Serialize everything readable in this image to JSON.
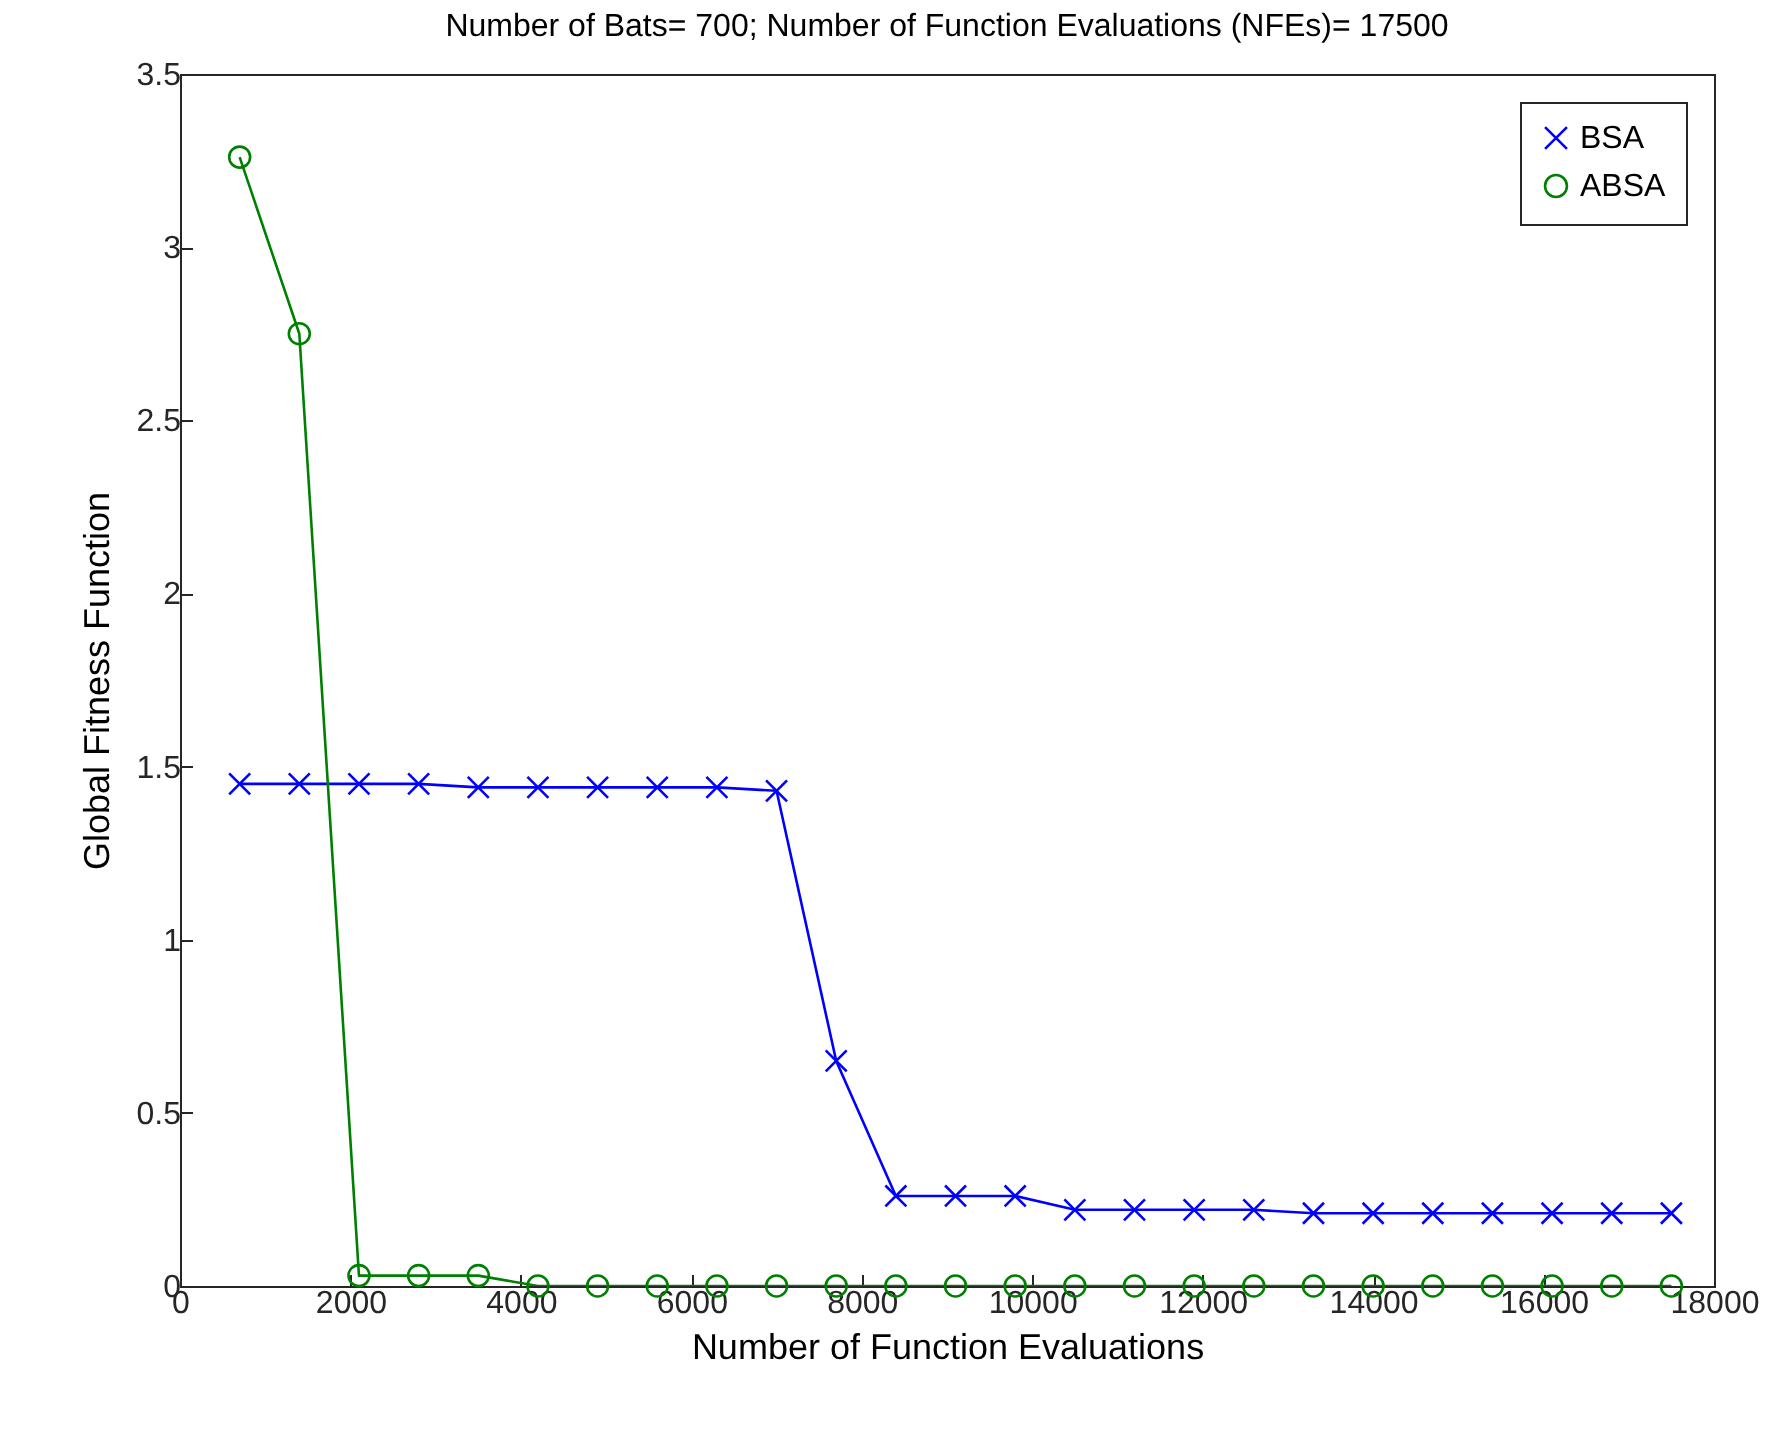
{
  "chart_data": {
    "type": "line",
    "title": "Number of Bats= 700; Number of Function Evaluations (NFEs)= 17500",
    "xlabel": "Number of Function Evaluations",
    "ylabel": "Global Fitness Function",
    "x": [
      700,
      1400,
      2100,
      2800,
      3500,
      4200,
      4900,
      5600,
      6300,
      7000,
      7700,
      8400,
      9100,
      9800,
      10500,
      11200,
      11900,
      12600,
      13300,
      14000,
      14700,
      15400,
      16100,
      16800,
      17500
    ],
    "series": [
      {
        "name": "BSA",
        "color": "#0000ff",
        "marker": "cross",
        "values": [
          1.45,
          1.45,
          1.45,
          1.45,
          1.44,
          1.44,
          1.44,
          1.44,
          1.44,
          1.43,
          0.65,
          0.26,
          0.26,
          0.26,
          0.22,
          0.22,
          0.22,
          0.22,
          0.21,
          0.21,
          0.21,
          0.21,
          0.21,
          0.21,
          0.21
        ]
      },
      {
        "name": "ABSA",
        "color": "#008000",
        "marker": "circle",
        "values": [
          3.26,
          2.75,
          0.03,
          0.03,
          0.03,
          0,
          0,
          0,
          0,
          0,
          0,
          0,
          0,
          0,
          0,
          0,
          0,
          0,
          0,
          0,
          0,
          0,
          0,
          0,
          0
        ]
      }
    ],
    "xlim": [
      0,
      18000
    ],
    "xticks": [
      0,
      2000,
      4000,
      6000,
      8000,
      10000,
      12000,
      14000,
      16000,
      18000
    ],
    "ylim": [
      0,
      3.5
    ],
    "yticks": [
      0,
      0.5,
      1,
      1.5,
      2,
      2.5,
      3,
      3.5
    ],
    "grid": false,
    "legend": "top right",
    "line_style": "solid"
  }
}
